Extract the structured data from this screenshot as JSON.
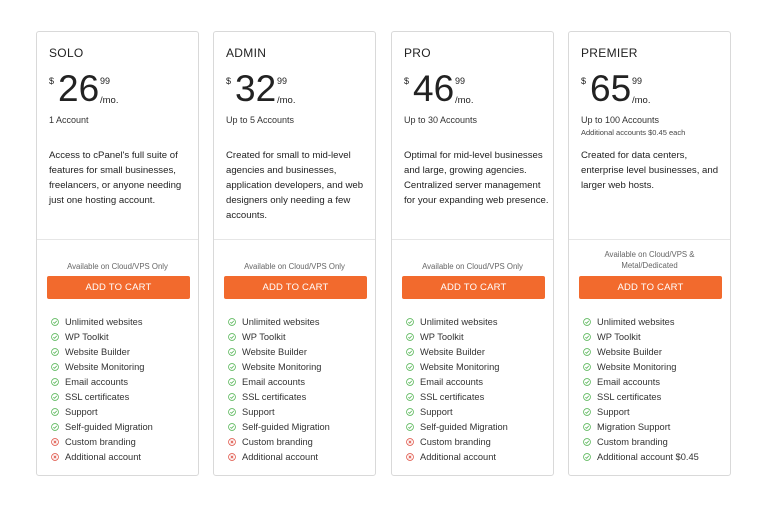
{
  "colors": {
    "accent": "#f26a2d",
    "check": "#5cb85c",
    "cross": "#e05a4e"
  },
  "plans": [
    {
      "name": "SOLO",
      "currency": "$",
      "price_main": "26",
      "price_cents": "99",
      "period": "/mo.",
      "accounts": "1 Account",
      "accounts_note": "",
      "description": "Access to cPanel's full suite of features for small businesses, freelancers, or anyone needing just one hosting account.",
      "availability": "Available on Cloud/VPS Only",
      "cta": "ADD TO CART",
      "features": [
        {
          "label": "Unlimited websites",
          "included": true
        },
        {
          "label": "WP Toolkit",
          "included": true
        },
        {
          "label": "Website Builder",
          "included": true
        },
        {
          "label": "Website Monitoring",
          "included": true
        },
        {
          "label": "Email accounts",
          "included": true
        },
        {
          "label": "SSL certificates",
          "included": true
        },
        {
          "label": "Support",
          "included": true
        },
        {
          "label": "Self-guided Migration",
          "included": true
        },
        {
          "label": "Custom branding",
          "included": false
        },
        {
          "label": "Additional account",
          "included": false
        }
      ]
    },
    {
      "name": "ADMIN",
      "currency": "$",
      "price_main": "32",
      "price_cents": "99",
      "period": "/mo.",
      "accounts": "Up to 5 Accounts",
      "accounts_note": "",
      "description": "Created for small to mid-level agencies and businesses, application developers, and web designers only needing a few accounts.",
      "availability": "Available on Cloud/VPS Only",
      "cta": "ADD TO CART",
      "features": [
        {
          "label": "Unlimited websites",
          "included": true
        },
        {
          "label": "WP Toolkit",
          "included": true
        },
        {
          "label": "Website Builder",
          "included": true
        },
        {
          "label": "Website Monitoring",
          "included": true
        },
        {
          "label": "Email accounts",
          "included": true
        },
        {
          "label": "SSL certificates",
          "included": true
        },
        {
          "label": "Support",
          "included": true
        },
        {
          "label": "Self-guided Migration",
          "included": true
        },
        {
          "label": "Custom branding",
          "included": false
        },
        {
          "label": "Additional account",
          "included": false
        }
      ]
    },
    {
      "name": "PRO",
      "currency": "$",
      "price_main": "46",
      "price_cents": "99",
      "period": "/mo.",
      "accounts": "Up to 30 Accounts",
      "accounts_note": "",
      "description": "Optimal for mid-level businesses and large, growing agencies. Centralized server management for your expanding web presence.",
      "availability": "Available on Cloud/VPS Only",
      "cta": "ADD TO CART",
      "features": [
        {
          "label": "Unlimited websites",
          "included": true
        },
        {
          "label": "WP Toolkit",
          "included": true
        },
        {
          "label": "Website Builder",
          "included": true
        },
        {
          "label": "Website Monitoring",
          "included": true
        },
        {
          "label": "Email accounts",
          "included": true
        },
        {
          "label": "SSL certificates",
          "included": true
        },
        {
          "label": "Support",
          "included": true
        },
        {
          "label": "Self-guided Migration",
          "included": true
        },
        {
          "label": "Custom branding",
          "included": false
        },
        {
          "label": "Additional account",
          "included": false
        }
      ]
    },
    {
      "name": "PREMIER",
      "currency": "$",
      "price_main": "65",
      "price_cents": "99",
      "period": "/mo.",
      "accounts": "Up to 100 Accounts",
      "accounts_note": "Additional accounts $0.45 each",
      "description": "Created for data centers, enterprise level businesses, and larger web hosts.",
      "availability": "Available on Cloud/VPS & Metal/Dedicated",
      "cta": "ADD TO CART",
      "features": [
        {
          "label": "Unlimited websites",
          "included": true
        },
        {
          "label": "WP Toolkit",
          "included": true
        },
        {
          "label": "Website Builder",
          "included": true
        },
        {
          "label": "Website Monitoring",
          "included": true
        },
        {
          "label": "Email accounts",
          "included": true
        },
        {
          "label": "SSL certificates",
          "included": true
        },
        {
          "label": "Support",
          "included": true
        },
        {
          "label": "Migration Support",
          "included": true
        },
        {
          "label": "Custom branding",
          "included": true
        },
        {
          "label": "Additional account $0.45",
          "included": true
        }
      ]
    }
  ]
}
